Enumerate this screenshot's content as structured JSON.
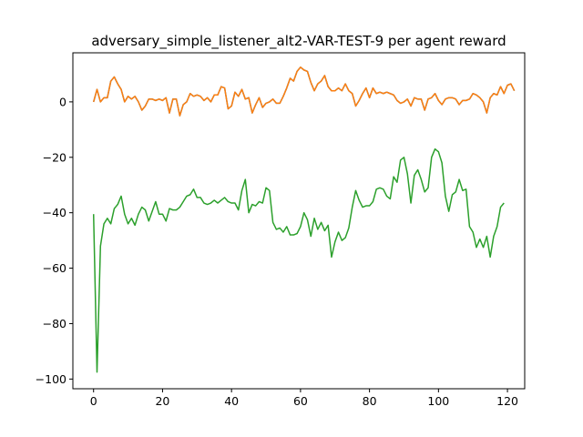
{
  "chart_data": {
    "type": "line",
    "title": "adversary_simple_listener_alt2-VAR-TEST-9 per agent reward",
    "xlabel": "",
    "ylabel": "",
    "xlim": [
      -6,
      125
    ],
    "ylim": [
      -103.5,
      17.7
    ],
    "x_ticks": [
      0,
      20,
      40,
      60,
      80,
      100,
      120
    ],
    "y_ticks": [
      0,
      -20,
      -40,
      -60,
      -80,
      -100
    ],
    "x_tick_labels": [
      "0",
      "20",
      "40",
      "60",
      "80",
      "100",
      "120"
    ],
    "y_tick_labels": [
      "0",
      "−20",
      "−40",
      "−60",
      "−80",
      "−100"
    ],
    "grid": false,
    "legend": "none",
    "series": [
      {
        "color": "#1f77b4",
        "values": [
          0,
          4.5,
          0,
          1.5,
          1.5,
          7.5,
          9,
          6.5,
          4.5,
          0,
          2,
          1,
          2,
          0,
          -3,
          -1.5,
          1,
          1,
          0.5,
          1,
          0.5,
          1.5,
          -4,
          1,
          1,
          -5,
          -1,
          0,
          3,
          2,
          2.5,
          2,
          0.5,
          1.5,
          0,
          2.5,
          2.5,
          5.5,
          5,
          -2.5,
          -1.5,
          3.5,
          2,
          4.5,
          1,
          1.5,
          -4,
          -1,
          1.5,
          -2,
          -0.5,
          0,
          1,
          -0.5,
          -0.5,
          2,
          5,
          8.5,
          7.5,
          11,
          12.5,
          11.5,
          11,
          7,
          4,
          6.5,
          7.5,
          9.5,
          5.5,
          4,
          4,
          5,
          4,
          6.5,
          4,
          3,
          -1.5,
          0.5,
          3,
          5,
          1.5,
          5,
          3,
          3.5,
          3,
          3.5,
          3,
          2.5,
          0.5,
          -0.5,
          0,
          1,
          -1.5,
          1.5,
          1,
          1,
          -3,
          1,
          1.5,
          3,
          0.5,
          -1,
          1,
          1.5,
          1.5,
          1,
          -1,
          0.5,
          0.5,
          1,
          3,
          2.5,
          1.5,
          0,
          -4,
          1.5,
          3,
          2.5,
          5.5,
          3,
          6,
          6.5,
          4
        ]
      },
      {
        "color": "#ff7f0e",
        "values": [
          0,
          4.5,
          0,
          1.5,
          1.5,
          7.5,
          9,
          6.5,
          4.5,
          0,
          2,
          1,
          2,
          0,
          -3,
          -1.5,
          1,
          1,
          0.5,
          1,
          0.5,
          1.5,
          -4,
          1,
          1,
          -5,
          -1,
          0,
          3,
          2,
          2.5,
          2,
          0.5,
          1.5,
          0,
          2.5,
          2.5,
          5.5,
          5,
          -2.5,
          -1.5,
          3.5,
          2,
          4.5,
          1,
          1.5,
          -4,
          -1,
          1.5,
          -2,
          -0.5,
          0,
          1,
          -0.5,
          -0.5,
          2,
          5,
          8.5,
          7.5,
          11,
          12.5,
          11.5,
          11,
          7,
          4,
          6.5,
          7.5,
          9.5,
          5.5,
          4,
          4,
          5,
          4,
          6.5,
          4,
          3,
          -1.5,
          0.5,
          3,
          5,
          1.5,
          5,
          3,
          3.5,
          3,
          3.5,
          3,
          2.5,
          0.5,
          -0.5,
          0,
          1,
          -1.5,
          1.5,
          1,
          1,
          -3,
          1,
          1.5,
          3,
          0.5,
          -1,
          1,
          1.5,
          1.5,
          1,
          -1,
          0.5,
          0.5,
          1,
          3,
          2.5,
          1.5,
          0,
          -4,
          1.5,
          3,
          2.5,
          5.5,
          3,
          6,
          6.5,
          4
        ]
      },
      {
        "color": "#2ca02c",
        "values": [
          -40.5,
          -97.5,
          -52,
          -44,
          -42,
          -44,
          -38.5,
          -37,
          -34,
          -40.5,
          -44,
          -42,
          -44.5,
          -40.5,
          -38,
          -39,
          -43,
          -39.5,
          -36,
          -40.5,
          -40.5,
          -43,
          -38.5,
          -39,
          -39,
          -38,
          -36,
          -34,
          -33.5,
          -31.5,
          -34.5,
          -34.5,
          -36.5,
          -37,
          -36.5,
          -35.5,
          -36.5,
          -35.5,
          -34.5,
          -36,
          -36.5,
          -36.5,
          -39,
          -32,
          -28,
          -40,
          -37,
          -37.5,
          -36,
          -36.5,
          -31,
          -32,
          -43.5,
          -46,
          -45.5,
          -47,
          -45,
          -48,
          -48,
          -47.5,
          -45,
          -40,
          -42.5,
          -48.5,
          -42,
          -46,
          -43.5,
          -46.5,
          -44.5,
          -56,
          -50.5,
          -47,
          -50,
          -49,
          -45.5,
          -38,
          -32,
          -35.5,
          -38,
          -37.5,
          -37.5,
          -36,
          -31.5,
          -31,
          -31.5,
          -34,
          -35,
          -27,
          -29,
          -21,
          -20,
          -26,
          -36.5,
          -26.5,
          -24.5,
          -28,
          -32.5,
          -31,
          -20,
          -17,
          -18,
          -22,
          -34,
          -39.5,
          -33.5,
          -32.5,
          -28,
          -32,
          -31.5,
          -45,
          -47,
          -52.5,
          -49.5,
          -52.5,
          -48.5,
          -56,
          -48.5,
          -45,
          -38,
          -36.5
        ]
      }
    ]
  }
}
